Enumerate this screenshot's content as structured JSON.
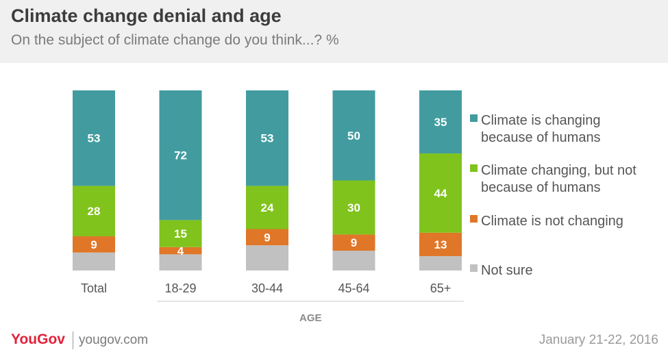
{
  "title": "Climate change denial and age",
  "subtitle": "On the subject of climate change do you think...? %",
  "footer": {
    "brand": "YouGov",
    "site": "yougov.com",
    "date": "January 21-22, 2016"
  },
  "colors": {
    "humans": "#429c9f",
    "not_humans": "#80c31c",
    "not_changing": "#e07627",
    "not_sure": "#c1c1c1"
  },
  "chart_data": {
    "type": "bar",
    "stacked": true,
    "categories": [
      "Total",
      "18-29",
      "30-44",
      "45-64",
      "65+"
    ],
    "xlabel": "AGE",
    "series": [
      {
        "name": "Not sure",
        "values": [
          10,
          9,
          14,
          11,
          8
        ],
        "color": "#c1c1c1",
        "labeled": false
      },
      {
        "name": "Climate is not changing",
        "values": [
          9,
          4,
          9,
          9,
          13
        ],
        "color": "#e07627",
        "labeled": true
      },
      {
        "name": "Climate changing, but not because of humans",
        "values": [
          28,
          15,
          24,
          30,
          44
        ],
        "color": "#80c31c",
        "labeled": true
      },
      {
        "name": "Climate is changing because of humans",
        "values": [
          53,
          72,
          53,
          50,
          35
        ],
        "color": "#429c9f",
        "labeled": true
      }
    ],
    "legend": [
      {
        "lines": [
          "Climate is changing",
          "because of humans"
        ],
        "color": "#429c9f"
      },
      {
        "lines": [
          "Climate changing, but not",
          "because of humans"
        ],
        "color": "#80c31c"
      },
      {
        "lines": [
          "Climate is not changing"
        ],
        "color": "#e07627"
      },
      {
        "lines": [
          "Not sure"
        ],
        "color": "#c1c1c1"
      }
    ],
    "legend_position": "right",
    "ylim": [
      0,
      100
    ]
  }
}
